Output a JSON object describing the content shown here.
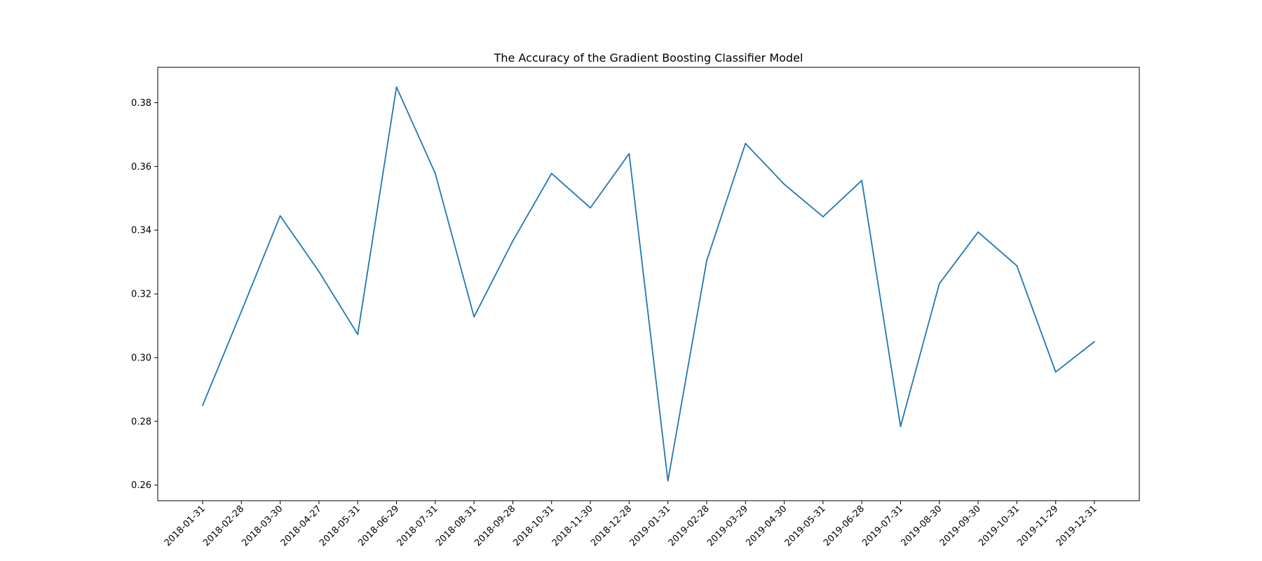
{
  "chart_data": {
    "type": "line",
    "title": "The Accuracy of the Gradient Boosting Classifier Model",
    "xlabel": "",
    "ylabel": "",
    "x": [
      "2018-01-31",
      "2018-02-28",
      "2018-03-30",
      "2018-04-27",
      "2018-05-31",
      "2018-06-29",
      "2018-07-31",
      "2018-08-31",
      "2018-09-28",
      "2018-10-31",
      "2018-11-30",
      "2018-12-28",
      "2019-01-31",
      "2019-02-28",
      "2019-03-29",
      "2019-04-30",
      "2019-05-31",
      "2019-06-28",
      "2019-07-31",
      "2019-08-30",
      "2019-09-30",
      "2019-10-31",
      "2019-11-29",
      "2019-12-31"
    ],
    "series": [
      {
        "color": "#1f77b4",
        "values": [
          0.285,
          0.3145,
          0.3445,
          0.327,
          0.3073,
          0.3849,
          0.3578,
          0.3128,
          0.3366,
          0.3578,
          0.347,
          0.364,
          0.2613,
          0.3304,
          0.3672,
          0.3544,
          0.3442,
          0.3556,
          0.2784,
          0.3232,
          0.3394,
          0.3288,
          0.2955,
          0.305
        ]
      }
    ],
    "yticks": [
      "0.26",
      "0.28",
      "0.30",
      "0.32",
      "0.34",
      "0.36",
      "0.38"
    ],
    "ylim": [
      0.2551,
      0.3911
    ],
    "grid": false,
    "legend": "none"
  }
}
